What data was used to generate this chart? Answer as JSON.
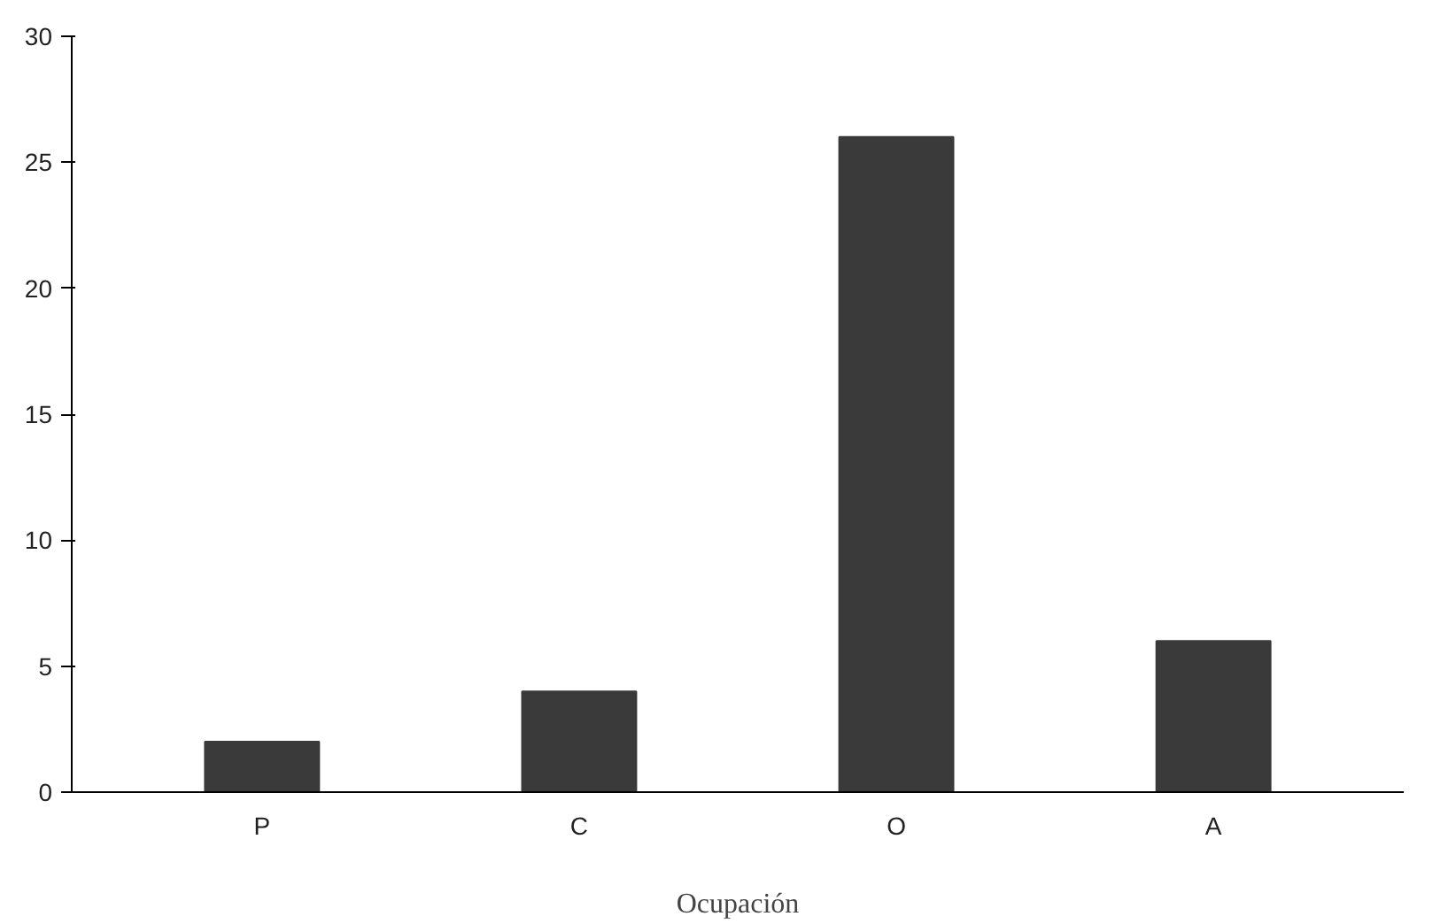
{
  "chart_data": {
    "type": "bar",
    "xlabel": "Ocupación",
    "categories": [
      "P",
      "C",
      "O",
      "A"
    ],
    "values": [
      2,
      4,
      26,
      6
    ],
    "color": "#3a3a3a",
    "ylim": [
      0,
      30
    ],
    "yticks": [
      0,
      5,
      10,
      15,
      20,
      25,
      30
    ],
    "grid": false
  }
}
